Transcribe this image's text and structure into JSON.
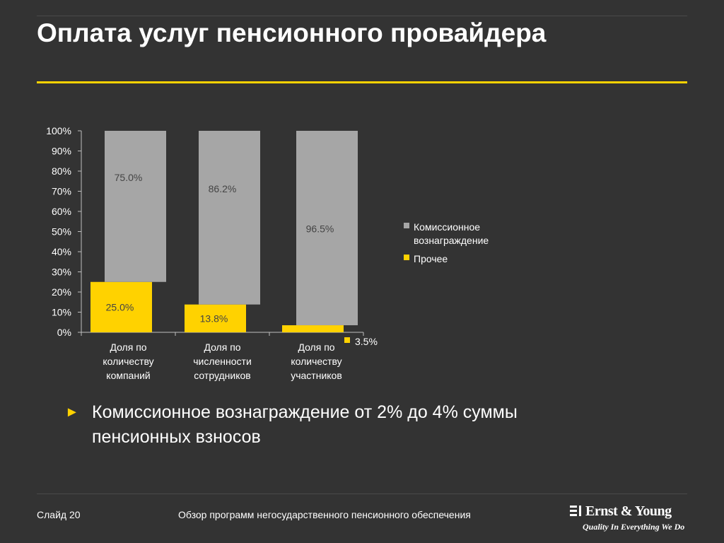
{
  "slide": {
    "title": "Оплата услуг пенсионного провайдера",
    "bullet": "Комиссионное вознаграждение от 2% до 4% суммы пенсионных взносов",
    "bullet_marker": "►",
    "footer_left": "Слайд 20",
    "footer_center": "Обзор программ негосударственного пенсионного обеспечения",
    "logo_name": "Ernst & Young",
    "logo_tagline": "Quality In Everything We Do"
  },
  "colors": {
    "background": "#333333",
    "accent": "#ffd200",
    "commission": "#a6a6a6",
    "other": "#ffd200",
    "text": "#ffffff"
  },
  "chart_data": {
    "type": "bar",
    "stacked": true,
    "categories": [
      [
        "Доля по",
        "количеству",
        "компаний"
      ],
      [
        "Доля по",
        "численности",
        "сотрудников"
      ],
      [
        "Доля по",
        "количеству",
        "участников"
      ]
    ],
    "series": [
      {
        "name": "Прочее",
        "values": [
          25.0,
          13.8,
          3.5
        ],
        "labels": [
          "25.0%",
          "13.8%",
          "3.5%"
        ],
        "color": "#ffd200"
      },
      {
        "name": "Комиссионное вознаграждение",
        "values": [
          75.0,
          86.2,
          96.5
        ],
        "labels": [
          "75.0%",
          "86.2%",
          "96.5%"
        ],
        "color": "#a6a6a6"
      }
    ],
    "yticks": [
      "0%",
      "10%",
      "20%",
      "30%",
      "40%",
      "50%",
      "60%",
      "70%",
      "80%",
      "90%",
      "100%"
    ],
    "ylim": [
      0,
      100
    ],
    "legend": [
      {
        "lines": [
          "Комиссионное",
          "вознаграждение"
        ],
        "color": "#a6a6a6"
      },
      {
        "lines": [
          "Прочее"
        ],
        "color": "#ffd200"
      }
    ],
    "legend_position": "right",
    "grid": false
  }
}
